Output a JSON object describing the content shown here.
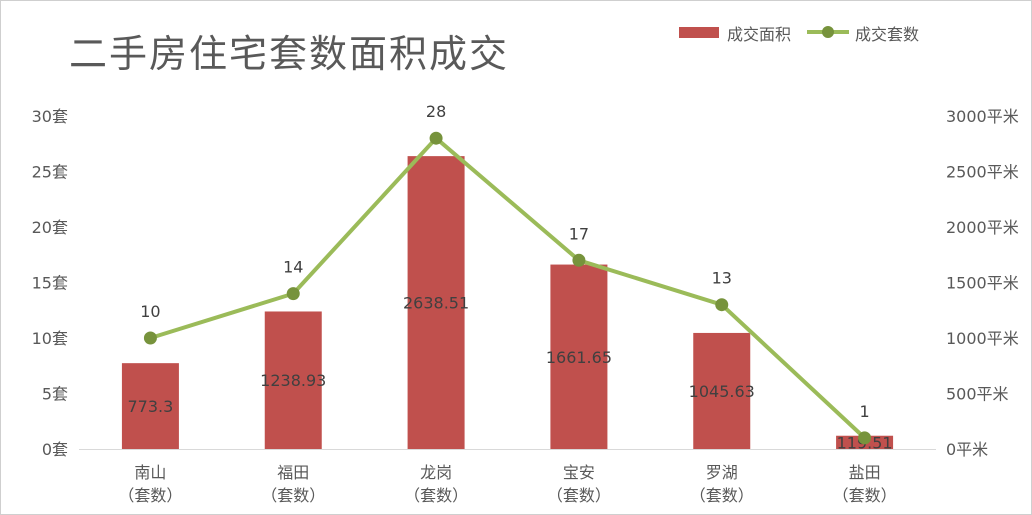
{
  "chart_data": {
    "type": "bar+line",
    "title": "二手房住宅套数面积成交",
    "categories": [
      [
        "南山",
        "（套数）"
      ],
      [
        "福田",
        "（套数）"
      ],
      [
        "龙岗",
        "（套数）"
      ],
      [
        "宝安",
        "（套数）"
      ],
      [
        "罗湖",
        "（套数）"
      ],
      [
        "盐田",
        "（套数）"
      ]
    ],
    "series": [
      {
        "name": "成交面积",
        "type": "bar",
        "axis": "right",
        "color": "#c0504d",
        "values": [
          773.3,
          1238.93,
          2638.51,
          1661.65,
          1045.63,
          119.51
        ],
        "labels": [
          "773.3",
          "1238.93",
          "2638.51",
          "1661.65",
          "1045.63",
          "119.51"
        ]
      },
      {
        "name": "成交套数",
        "type": "line",
        "axis": "left",
        "color": "#9bbb59",
        "values": [
          10,
          14,
          28,
          17,
          13,
          1
        ],
        "labels": [
          "10",
          "14",
          "28",
          "17",
          "13",
          "1"
        ]
      }
    ],
    "y_left": {
      "ylim": [
        0,
        30
      ],
      "ticks": [
        0,
        5,
        10,
        15,
        20,
        25,
        30
      ],
      "tick_labels": [
        "0套",
        "5套",
        "10套",
        "15套",
        "20套",
        "25套",
        "30套"
      ]
    },
    "y_right": {
      "ylim": [
        0,
        3000
      ],
      "ticks": [
        0,
        500,
        1000,
        1500,
        2000,
        2500,
        3000
      ],
      "tick_labels": [
        "0平米",
        "500平米",
        "1000平米",
        "1500平米",
        "2000平米",
        "2500平米",
        "3000平米"
      ]
    },
    "grid": false,
    "legend_position": "top-right"
  }
}
